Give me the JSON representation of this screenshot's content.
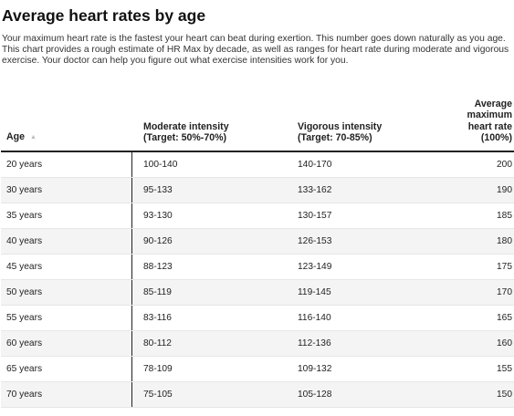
{
  "title": "Average heart rates by age",
  "intro": "Your maximum heart rate is the fastest your heart can beat during exertion. This number goes down naturally as you age. This chart provides a rough estimate of HR Max by decade, as well as ranges for heart rate during moderate and vigorous exercise. Your doctor can help you figure out what exercise intensities work for you.",
  "columns": {
    "age": "Age",
    "moderate": [
      "Moderate intensity",
      "(Target: 50%-70%)"
    ],
    "vigorous": [
      "Vigorous intensity",
      "(Target: 70-85%)"
    ],
    "max": [
      "Average",
      "maximum",
      "heart rate",
      "(100%)"
    ]
  },
  "sort_icon": "sort-ascending-icon",
  "rows": [
    {
      "age": "20 years",
      "moderate": "100-140",
      "vigorous": "140-170",
      "max": "200"
    },
    {
      "age": "30 years",
      "moderate": "95-133",
      "vigorous": "133-162",
      "max": "190"
    },
    {
      "age": "35 years",
      "moderate": "93-130",
      "vigorous": "130-157",
      "max": "185"
    },
    {
      "age": "40 years",
      "moderate": "90-126",
      "vigorous": "126-153",
      "max": "180"
    },
    {
      "age": "45 years",
      "moderate": "88-123",
      "vigorous": "123-149",
      "max": "175"
    },
    {
      "age": "50 years",
      "moderate": "85-119",
      "vigorous": "119-145",
      "max": "170"
    },
    {
      "age": "55 years",
      "moderate": "83-116",
      "vigorous": "116-140",
      "max": "165"
    },
    {
      "age": "60 years",
      "moderate": "80-112",
      "vigorous": "112-136",
      "max": "160"
    },
    {
      "age": "65 years",
      "moderate": "78-109",
      "vigorous": "109-132",
      "max": "155"
    },
    {
      "age": "70 years",
      "moderate": "75-105",
      "vigorous": "105-128",
      "max": "150"
    }
  ]
}
